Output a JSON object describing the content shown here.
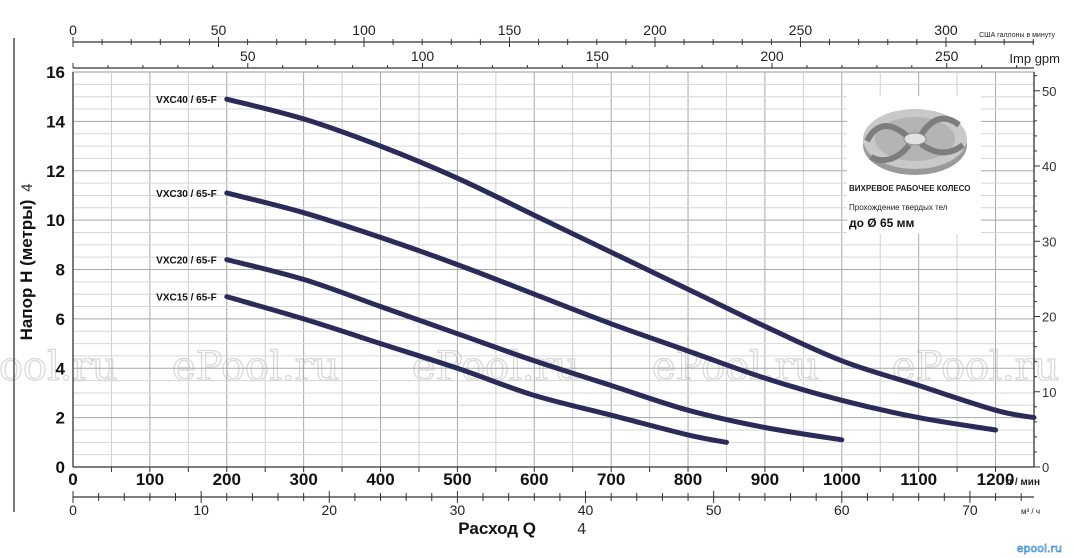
{
  "chart_data": {
    "type": "line",
    "title": "",
    "xlabel": "Расход Q",
    "xlabel_icon": "4",
    "ylabel": "Напор H (метры)",
    "ylabel_icon": "4",
    "x_unit_lpm": "л / мин",
    "x_unit_m3h": "м³ / ч",
    "x_unit_usgpm": "США галлоны в минуту",
    "x_unit_impgpm": "Imp gpm",
    "xlim_lpm": [
      0,
      1250
    ],
    "ylim_m": [
      0,
      16
    ],
    "grid": true,
    "axis_lpm_ticks": [
      0,
      100,
      200,
      300,
      400,
      500,
      600,
      700,
      800,
      900,
      1000,
      1100,
      1200
    ],
    "axis_m_ticks": [
      0,
      2,
      4,
      6,
      8,
      10,
      12,
      14,
      16
    ],
    "axis_m3h_ticks": [
      0,
      10,
      20,
      30,
      40,
      50,
      60,
      70
    ],
    "axis_usgpm_ticks": [
      0,
      50,
      100,
      150,
      200,
      250,
      300
    ],
    "axis_impgpm_ticks": [
      50,
      100,
      150,
      200,
      250
    ],
    "axis_ft_ticks": [
      0,
      10,
      20,
      30,
      40,
      50
    ],
    "series": [
      {
        "name": "VXC40 / 65-F",
        "x": [
          200,
          300,
          400,
          500,
          600,
          700,
          800,
          900,
          1000,
          1100,
          1200,
          1250
        ],
        "y": [
          14.9,
          14.1,
          13.0,
          11.7,
          10.2,
          8.7,
          7.2,
          5.7,
          4.3,
          3.3,
          2.3,
          2.0
        ]
      },
      {
        "name": "VXC30 / 65-F",
        "x": [
          200,
          300,
          400,
          500,
          600,
          700,
          800,
          900,
          1000,
          1100,
          1200
        ],
        "y": [
          11.1,
          10.3,
          9.3,
          8.2,
          7.0,
          5.8,
          4.7,
          3.6,
          2.7,
          2.0,
          1.5
        ]
      },
      {
        "name": "VXC20 / 65-F",
        "x": [
          200,
          300,
          400,
          500,
          600,
          700,
          800,
          900,
          1000
        ],
        "y": [
          8.4,
          7.6,
          6.5,
          5.4,
          4.3,
          3.3,
          2.3,
          1.6,
          1.1
        ]
      },
      {
        "name": "VXC15 / 65-F",
        "x": [
          200,
          300,
          400,
          500,
          600,
          700,
          800,
          850
        ],
        "y": [
          6.9,
          6.0,
          5.0,
          4.0,
          2.9,
          2.1,
          1.3,
          1.0
        ]
      }
    ]
  },
  "impeller_box": {
    "title": "ВИХРЕВОЕ РАБОЧЕЕ КОЛЕСО",
    "subtitle": "Прохождение твердых тел",
    "size": "до Ø 65 мм"
  },
  "watermark": "ePool.ru",
  "corner_logo": "epool.ru"
}
